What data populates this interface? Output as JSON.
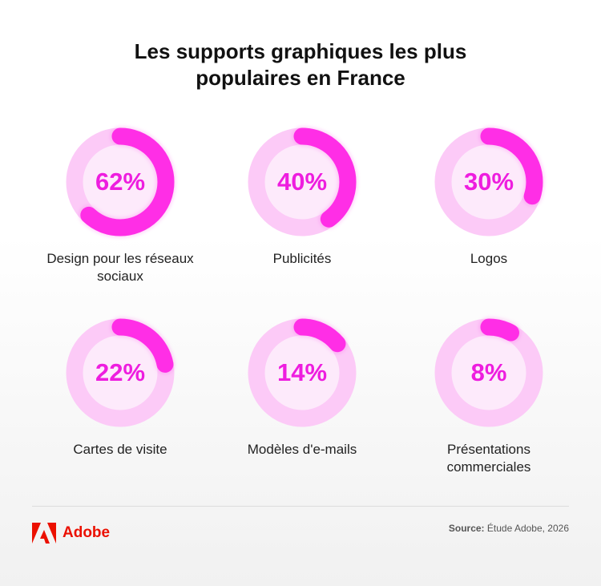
{
  "chart_data": {
    "type": "donut",
    "title": "Les supports graphiques les plus populaires en France",
    "categories": [
      "Design pour les réseaux sociaux",
      "Publicités",
      "Logos",
      "Cartes de visite",
      "Modèles d'e-mails",
      "Présentations commerciales"
    ],
    "values": [
      62,
      40,
      30,
      22,
      14,
      8
    ],
    "value_labels": [
      "62%",
      "40%",
      "30%",
      "22%",
      "14%",
      "8%"
    ],
    "ylim": [
      0,
      100
    ],
    "color": "#ff2ee6",
    "track_color": "#fccaf7"
  },
  "footer": {
    "brand": "Adobe",
    "source_label": "Source:",
    "source": "Étude Adobe, 2026"
  }
}
